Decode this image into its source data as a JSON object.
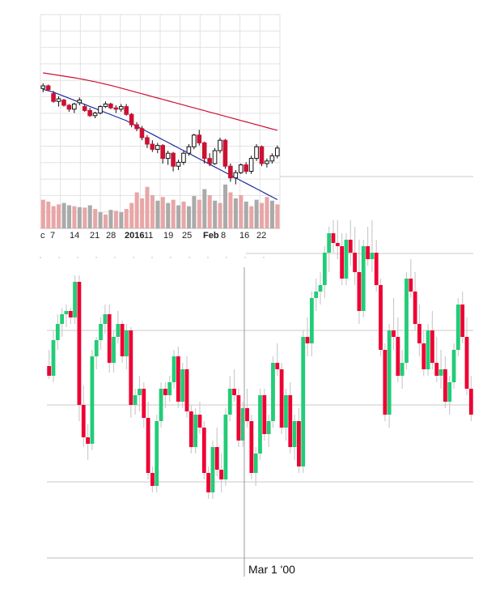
{
  "chart_data": [
    {
      "type": "candlestick",
      "x_ticks": [
        "c",
        "7",
        "14",
        "21",
        "28",
        "2016",
        "11",
        "19",
        "25",
        "Feb",
        "8",
        "16",
        "22"
      ],
      "bold_ticks": [
        "2016",
        "Feb"
      ],
      "grid": true,
      "colors": {
        "up": "#ffffff",
        "down": "#cc1133",
        "vol_up": "#aaaaaa",
        "vol_down": "#e8a6a6",
        "ma_long": "#cc1133",
        "ma_short": "#1a2aa0"
      },
      "ylim": [
        0,
        100
      ],
      "candles": [
        [
          88,
          92,
          85,
          90
        ],
        [
          90,
          91,
          86,
          87
        ],
        [
          84,
          86,
          77,
          78
        ],
        [
          78,
          82,
          74,
          80
        ],
        [
          79,
          80,
          74,
          75
        ],
        [
          75,
          76,
          70,
          72
        ],
        [
          72,
          77,
          69,
          76
        ],
        [
          77,
          81,
          75,
          79
        ],
        [
          74,
          76,
          70,
          71
        ],
        [
          71,
          73,
          66,
          67
        ],
        [
          67,
          70,
          65,
          69
        ],
        [
          69,
          75,
          68,
          74
        ],
        [
          74,
          78,
          73,
          76
        ],
        [
          76,
          77,
          72,
          73
        ],
        [
          73,
          75,
          69,
          72
        ],
        [
          72,
          76,
          70,
          74
        ],
        [
          74,
          76,
          67,
          68
        ],
        [
          68,
          69,
          58,
          60
        ],
        [
          60,
          62,
          55,
          57
        ],
        [
          57,
          59,
          48,
          50
        ],
        [
          50,
          52,
          42,
          45
        ],
        [
          45,
          48,
          39,
          41
        ],
        [
          41,
          46,
          38,
          44
        ],
        [
          44,
          45,
          30,
          34
        ],
        [
          34,
          40,
          29,
          38
        ],
        [
          38,
          39,
          24,
          28
        ],
        [
          28,
          33,
          25,
          31
        ],
        [
          31,
          40,
          29,
          38
        ],
        [
          38,
          45,
          36,
          43
        ],
        [
          43,
          53,
          41,
          52
        ],
        [
          52,
          56,
          44,
          46
        ],
        [
          46,
          47,
          30,
          34
        ],
        [
          34,
          38,
          28,
          30
        ],
        [
          30,
          42,
          29,
          40
        ],
        [
          40,
          50,
          38,
          48
        ],
        [
          48,
          49,
          26,
          28
        ],
        [
          28,
          30,
          16,
          19
        ],
        [
          19,
          25,
          14,
          23
        ],
        [
          23,
          30,
          22,
          29
        ],
        [
          29,
          31,
          22,
          24
        ],
        [
          24,
          36,
          22,
          34
        ],
        [
          34,
          45,
          32,
          43
        ],
        [
          43,
          44,
          28,
          30
        ],
        [
          30,
          34,
          27,
          32
        ],
        [
          32,
          38,
          30,
          36
        ],
        [
          36,
          44,
          34,
          42
        ]
      ],
      "volume": [
        [
          0.62,
          0
        ],
        [
          0.58,
          0
        ],
        [
          0.48,
          0
        ],
        [
          0.52,
          0
        ],
        [
          0.55,
          1
        ],
        [
          0.5,
          1
        ],
        [
          0.48,
          0
        ],
        [
          0.46,
          1
        ],
        [
          0.45,
          0
        ],
        [
          0.5,
          1
        ],
        [
          0.42,
          0
        ],
        [
          0.35,
          1
        ],
        [
          0.3,
          0
        ],
        [
          0.4,
          1
        ],
        [
          0.38,
          0
        ],
        [
          0.35,
          1
        ],
        [
          0.42,
          0
        ],
        [
          0.55,
          0
        ],
        [
          0.78,
          0
        ],
        [
          0.65,
          0
        ],
        [
          0.9,
          0
        ],
        [
          0.72,
          0
        ],
        [
          0.6,
          1
        ],
        [
          0.68,
          0
        ],
        [
          0.55,
          1
        ],
        [
          0.62,
          0
        ],
        [
          0.5,
          1
        ],
        [
          0.58,
          0
        ],
        [
          0.48,
          1
        ],
        [
          0.7,
          1
        ],
        [
          0.62,
          0
        ],
        [
          0.85,
          1
        ],
        [
          0.72,
          0
        ],
        [
          0.6,
          1
        ],
        [
          0.55,
          0
        ],
        [
          0.95,
          1
        ],
        [
          0.78,
          0
        ],
        [
          0.65,
          1
        ],
        [
          0.72,
          0
        ],
        [
          0.58,
          1
        ],
        [
          0.48,
          0
        ],
        [
          0.62,
          1
        ],
        [
          0.55,
          0
        ],
        [
          0.68,
          0
        ],
        [
          0.6,
          1
        ],
        [
          0.52,
          0
        ]
      ],
      "ma_long": [
        100,
        99.6,
        99.2,
        98.8,
        98.4,
        98,
        97.6,
        97.1,
        96.6,
        96.1,
        95.6,
        95,
        94.4,
        93.8,
        93.1,
        92.4,
        91.7,
        91,
        90.3,
        89.6,
        88.9,
        88.2,
        87.5,
        86.8,
        86.1,
        85.4,
        84.7,
        84,
        83.3,
        82.6,
        81.9,
        81.2,
        80.5,
        79.8,
        79.1,
        78.4,
        77.7,
        77,
        76.3,
        75.6,
        74.9,
        74.2,
        73.5,
        72.8,
        72.1,
        71.4
      ],
      "ma_short": [
        85,
        84,
        83,
        81.5,
        80,
        78.5,
        77,
        75.5,
        74,
        72.5,
        71,
        69.5,
        68,
        66.5,
        65,
        63.5,
        62,
        60,
        58,
        56,
        54,
        52,
        50,
        48,
        46,
        44,
        42,
        40,
        38,
        36,
        34,
        32,
        30,
        28,
        26,
        24,
        22,
        20,
        18,
        16,
        14,
        12,
        10,
        8,
        6,
        4
      ]
    },
    {
      "type": "candlestick",
      "crosshair_label": "Mar 1 '00",
      "grid": true,
      "colors": {
        "up": "#22cc77",
        "down": "#ee0033",
        "wick": "#cccccc"
      },
      "ylim": [
        0,
        100
      ],
      "candles": [
        [
          47,
          52,
          43,
          44
        ],
        [
          44,
          58,
          42,
          55
        ],
        [
          55,
          63,
          52,
          60
        ],
        [
          60,
          65,
          56,
          63
        ],
        [
          63,
          66,
          59,
          64
        ],
        [
          64,
          65,
          60,
          62
        ],
        [
          62,
          75,
          60,
          73
        ],
        [
          73,
          75,
          30,
          35
        ],
        [
          35,
          41,
          22,
          25
        ],
        [
          25,
          29,
          18,
          23
        ],
        [
          23,
          52,
          21,
          50
        ],
        [
          50,
          56,
          46,
          55
        ],
        [
          55,
          62,
          52,
          60
        ],
        [
          60,
          66,
          57,
          63
        ],
        [
          63,
          66,
          45,
          48
        ],
        [
          48,
          58,
          45,
          56
        ],
        [
          56,
          64,
          54,
          60
        ],
        [
          60,
          61,
          48,
          50
        ],
        [
          50,
          60,
          46,
          58
        ],
        [
          58,
          59,
          31,
          35
        ],
        [
          35,
          40,
          32,
          38
        ],
        [
          38,
          44,
          33,
          40
        ],
        [
          40,
          42,
          28,
          31
        ],
        [
          31,
          36,
          12,
          14
        ],
        [
          14,
          16,
          8,
          10
        ],
        [
          10,
          32,
          8,
          30
        ],
        [
          30,
          42,
          28,
          40
        ],
        [
          40,
          42,
          34,
          38
        ],
        [
          38,
          44,
          36,
          42
        ],
        [
          42,
          52,
          40,
          50
        ],
        [
          50,
          53,
          34,
          36
        ],
        [
          36,
          48,
          34,
          46
        ],
        [
          46,
          50,
          31,
          33
        ],
        [
          33,
          35,
          20,
          22
        ],
        [
          22,
          34,
          20,
          32
        ],
        [
          32,
          36,
          26,
          28
        ],
        [
          28,
          30,
          12,
          14
        ],
        [
          14,
          16,
          6,
          8
        ],
        [
          8,
          24,
          6,
          22
        ],
        [
          22,
          28,
          13,
          15
        ],
        [
          15,
          20,
          8,
          12
        ],
        [
          12,
          34,
          10,
          32
        ],
        [
          32,
          44,
          30,
          40
        ],
        [
          40,
          46,
          36,
          38
        ],
        [
          38,
          40,
          22,
          24
        ],
        [
          24,
          36,
          22,
          34
        ],
        [
          34,
          40,
          28,
          30
        ],
        [
          30,
          32,
          12,
          14
        ],
        [
          14,
          22,
          10,
          20
        ],
        [
          20,
          40,
          18,
          38
        ],
        [
          38,
          40,
          24,
          26
        ],
        [
          26,
          32,
          22,
          30
        ],
        [
          30,
          50,
          28,
          48
        ],
        [
          48,
          54,
          44,
          46
        ],
        [
          46,
          48,
          26,
          28
        ],
        [
          28,
          40,
          24,
          38
        ],
        [
          38,
          42,
          20,
          22
        ],
        [
          22,
          32,
          18,
          30
        ],
        [
          30,
          34,
          14,
          16
        ],
        [
          16,
          58,
          14,
          56
        ],
        [
          56,
          62,
          50,
          54
        ],
        [
          54,
          70,
          50,
          68
        ],
        [
          68,
          74,
          64,
          70
        ],
        [
          70,
          76,
          66,
          72
        ],
        [
          72,
          84,
          68,
          82
        ],
        [
          82,
          90,
          76,
          88
        ],
        [
          88,
          92,
          82,
          85
        ],
        [
          85,
          92,
          80,
          84
        ],
        [
          84,
          88,
          72,
          74
        ],
        [
          74,
          88,
          72,
          86
        ],
        [
          86,
          92,
          78,
          82
        ],
        [
          82,
          90,
          72,
          76
        ],
        [
          76,
          86,
          60,
          64
        ],
        [
          64,
          86,
          62,
          84
        ],
        [
          84,
          90,
          78,
          80
        ],
        [
          80,
          92,
          76,
          82
        ],
        [
          82,
          86,
          70,
          72
        ],
        [
          72,
          74,
          50,
          52
        ],
        [
          52,
          54,
          30,
          32
        ],
        [
          32,
          60,
          28,
          58
        ],
        [
          58,
          68,
          52,
          56
        ],
        [
          56,
          62,
          42,
          44
        ],
        [
          44,
          52,
          40,
          48
        ],
        [
          48,
          76,
          46,
          74
        ],
        [
          74,
          80,
          68,
          70
        ],
        [
          70,
          76,
          58,
          60
        ],
        [
          60,
          66,
          50,
          54
        ],
        [
          54,
          58,
          44,
          46
        ],
        [
          46,
          60,
          44,
          58
        ],
        [
          58,
          64,
          46,
          48
        ],
        [
          48,
          56,
          42,
          44
        ],
        [
          44,
          52,
          40,
          46
        ],
        [
          46,
          50,
          34,
          36
        ],
        [
          36,
          44,
          32,
          42
        ],
        [
          42,
          54,
          40,
          52
        ],
        [
          52,
          68,
          50,
          66
        ],
        [
          66,
          70,
          54,
          56
        ],
        [
          56,
          62,
          38,
          40
        ],
        [
          40,
          44,
          30,
          32
        ]
      ]
    }
  ]
}
